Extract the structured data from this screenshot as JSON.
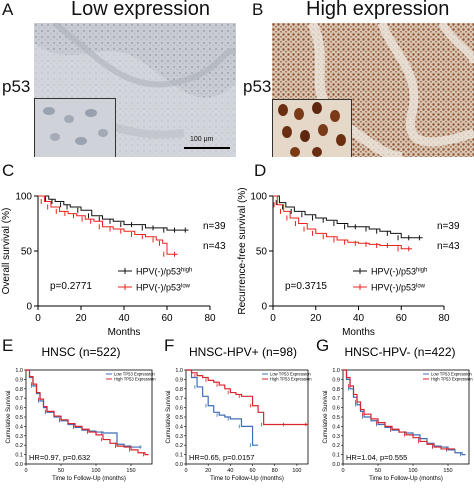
{
  "panels": {
    "A": {
      "letter": "A",
      "title": "Low expression",
      "row_label": "p53",
      "scale_bar": "100 μm"
    },
    "B": {
      "letter": "B",
      "title": "High expression",
      "row_label": "p53"
    },
    "C": {
      "letter": "C"
    },
    "D": {
      "letter": "D"
    },
    "E": {
      "letter": "E"
    },
    "F": {
      "letter": "F"
    },
    "G": {
      "letter": "G"
    }
  },
  "colors": {
    "black_curve": "#111111",
    "red_curve": "#e8231b",
    "blue_curve": "#3d6fb6",
    "red_km": "#d8262e",
    "stain_low": "#c9cdd3",
    "stain_high": "#8a5a3a"
  },
  "chart_data": [
    {
      "id": "C",
      "type": "line",
      "ylabel": "Overall survival (%)",
      "xlabel": "Months",
      "xlim": [
        0,
        80
      ],
      "ylim": [
        0,
        100
      ],
      "xticks": [
        "0",
        "20",
        "40",
        "60",
        "80"
      ],
      "yticks": [
        "0",
        "50",
        "100"
      ],
      "pvalue": "p=0.2771",
      "legend_position": "bottom-right",
      "series": [
        {
          "name": "HPV(-)/p53high",
          "legend_base": "HPV(-)/p53",
          "legend_sup": "high",
          "n_label": "n=39",
          "color": "#111111",
          "x": [
            0,
            5,
            8,
            12,
            15,
            20,
            25,
            30,
            35,
            40,
            45,
            50,
            55,
            60,
            65,
            70
          ],
          "y": [
            100,
            97,
            95,
            92,
            90,
            87,
            82,
            79,
            77,
            74,
            74,
            71,
            71,
            69,
            69,
            69
          ]
        },
        {
          "name": "HPV(-)/p53low",
          "legend_base": "HPV(-)/p53",
          "legend_sup": "low",
          "n_label": "n=43",
          "color": "#e8231b",
          "x": [
            0,
            3,
            6,
            10,
            14,
            18,
            22,
            26,
            30,
            35,
            40,
            45,
            50,
            55,
            58,
            60,
            65
          ],
          "y": [
            100,
            95,
            90,
            86,
            84,
            82,
            79,
            77,
            72,
            70,
            68,
            65,
            63,
            60,
            57,
            47,
            47
          ]
        }
      ]
    },
    {
      "id": "D",
      "type": "line",
      "ylabel": "Recurrence-free survival (%)",
      "xlabel": "Months",
      "xlim": [
        0,
        80
      ],
      "ylim": [
        0,
        100
      ],
      "xticks": [
        "0",
        "20",
        "40",
        "60",
        "80"
      ],
      "yticks": [
        "0",
        "50",
        "100"
      ],
      "pvalue": "p=0.3715",
      "legend_position": "bottom-right",
      "series": [
        {
          "name": "HPV(-)/p53high",
          "legend_base": "HPV(-)/p53",
          "legend_sup": "high",
          "n_label": "n=39",
          "color": "#111111",
          "x": [
            0,
            3,
            6,
            10,
            15,
            20,
            25,
            30,
            35,
            40,
            45,
            50,
            55,
            60,
            65,
            70
          ],
          "y": [
            100,
            94,
            90,
            86,
            83,
            80,
            78,
            75,
            72,
            72,
            70,
            68,
            66,
            62,
            62,
            62
          ]
        },
        {
          "name": "HPV(-)/p53low",
          "legend_base": "HPV(-)/p53",
          "legend_sup": "low",
          "n_label": "n=43",
          "color": "#e8231b",
          "x": [
            0,
            2,
            5,
            8,
            12,
            16,
            20,
            25,
            30,
            35,
            40,
            45,
            50,
            55,
            60,
            65
          ],
          "y": [
            100,
            92,
            86,
            80,
            75,
            70,
            66,
            63,
            60,
            58,
            57,
            56,
            55,
            55,
            52,
            52
          ]
        }
      ]
    },
    {
      "id": "E",
      "type": "line",
      "title": "HNSC (n=522)",
      "ylabel": "Cumulative Survival",
      "xlabel": "Time to Follow-Up (months)",
      "xlim": [
        0,
        180
      ],
      "ylim": [
        0,
        1
      ],
      "xticks": [
        "0",
        "50",
        "100",
        "150"
      ],
      "yticks": [
        "0.0",
        "0.1",
        "0.2",
        "0.3",
        "0.4",
        "0.5",
        "0.6",
        "0.7",
        "0.8",
        "0.9",
        "1.0"
      ],
      "legend_position": "top-right",
      "annotation": "HR=0.97, p=0.632",
      "series": [
        {
          "name": "Low TP53 Expression",
          "color": "#3d6fb6",
          "x": [
            0,
            5,
            10,
            15,
            20,
            25,
            30,
            40,
            50,
            60,
            70,
            80,
            90,
            100,
            110,
            120,
            130,
            140,
            150,
            160,
            165
          ],
          "y": [
            1.0,
            0.92,
            0.83,
            0.75,
            0.67,
            0.6,
            0.55,
            0.5,
            0.46,
            0.42,
            0.39,
            0.36,
            0.35,
            0.34,
            0.33,
            0.33,
            0.21,
            0.19,
            0.18,
            0.18,
            0.18
          ]
        },
        {
          "name": "High TP53 Expression",
          "color": "#d8262e",
          "x": [
            0,
            5,
            10,
            15,
            20,
            25,
            30,
            40,
            50,
            60,
            70,
            80,
            90,
            100,
            110,
            120,
            130,
            140,
            150,
            160,
            170,
            175
          ],
          "y": [
            1.0,
            0.93,
            0.85,
            0.76,
            0.69,
            0.61,
            0.56,
            0.51,
            0.47,
            0.43,
            0.4,
            0.37,
            0.34,
            0.31,
            0.26,
            0.22,
            0.19,
            0.18,
            0.15,
            0.12,
            0.1,
            0.1
          ]
        }
      ]
    },
    {
      "id": "F",
      "type": "line",
      "title": "HNSC-HPV+ (n=98)",
      "ylabel": "Cumulative Survival",
      "xlabel": "Time to Follow-Up (months)",
      "xlim": [
        0,
        110
      ],
      "ylim": [
        0,
        1
      ],
      "xticks": [
        "0",
        "20",
        "40",
        "60",
        "80",
        "100"
      ],
      "yticks": [
        "0.0",
        "0.1",
        "0.2",
        "0.3",
        "0.4",
        "0.5",
        "0.6",
        "0.7",
        "0.8",
        "0.9",
        "1.0"
      ],
      "legend_position": "top-right",
      "annotation": "HR=0.65, p=0.0157",
      "series": [
        {
          "name": "Low TP53 Expression",
          "color": "#3d6fb6",
          "x": [
            0,
            5,
            10,
            15,
            20,
            25,
            30,
            35,
            40,
            45,
            50,
            55,
            60,
            65
          ],
          "y": [
            1.0,
            0.92,
            0.82,
            0.72,
            0.62,
            0.55,
            0.52,
            0.5,
            0.48,
            0.48,
            0.4,
            0.4,
            0.2,
            0.2
          ]
        },
        {
          "name": "High TP53 Expression",
          "color": "#d8262e",
          "x": [
            0,
            5,
            10,
            15,
            20,
            25,
            30,
            35,
            40,
            45,
            50,
            55,
            60,
            65,
            70,
            80,
            90,
            100,
            110
          ],
          "y": [
            1.0,
            0.97,
            0.94,
            0.92,
            0.89,
            0.87,
            0.84,
            0.8,
            0.76,
            0.74,
            0.72,
            0.72,
            0.62,
            0.55,
            0.42,
            0.42,
            0.42,
            0.42,
            0.42
          ]
        }
      ]
    },
    {
      "id": "G",
      "type": "line",
      "title": "HNSC-HPV- (n=422)",
      "ylabel": "Cumulative Survival",
      "xlabel": "Time to Follow-Up (months)",
      "xlim": [
        0,
        180
      ],
      "ylim": [
        0,
        1
      ],
      "xticks": [
        "0",
        "50",
        "100",
        "150"
      ],
      "yticks": [
        "0.0",
        "0.1",
        "0.2",
        "0.3",
        "0.4",
        "0.5",
        "0.6",
        "0.7",
        "0.8",
        "0.9",
        "1.0"
      ],
      "legend_position": "top-right",
      "annotation": "HR=1.04, p=0.555",
      "series": [
        {
          "name": "Low TP53 Expression",
          "color": "#3d6fb6",
          "x": [
            0,
            5,
            10,
            15,
            20,
            25,
            30,
            40,
            50,
            60,
            70,
            80,
            90,
            100,
            110,
            120,
            130,
            140,
            150,
            160,
            170,
            175
          ],
          "y": [
            1.0,
            0.9,
            0.8,
            0.71,
            0.63,
            0.56,
            0.5,
            0.46,
            0.42,
            0.39,
            0.36,
            0.34,
            0.33,
            0.31,
            0.27,
            0.22,
            0.19,
            0.18,
            0.15,
            0.12,
            0.1,
            0.1
          ]
        },
        {
          "name": "High TP53 Expression",
          "color": "#d8262e",
          "x": [
            0,
            5,
            10,
            15,
            20,
            25,
            30,
            40,
            50,
            60,
            70,
            80,
            90,
            100,
            110,
            120,
            130,
            140,
            150,
            160
          ],
          "y": [
            1.0,
            0.92,
            0.83,
            0.74,
            0.66,
            0.58,
            0.53,
            0.48,
            0.44,
            0.4,
            0.37,
            0.34,
            0.31,
            0.28,
            0.24,
            0.21,
            0.18,
            0.16,
            0.16,
            0.16
          ]
        }
      ]
    }
  ]
}
